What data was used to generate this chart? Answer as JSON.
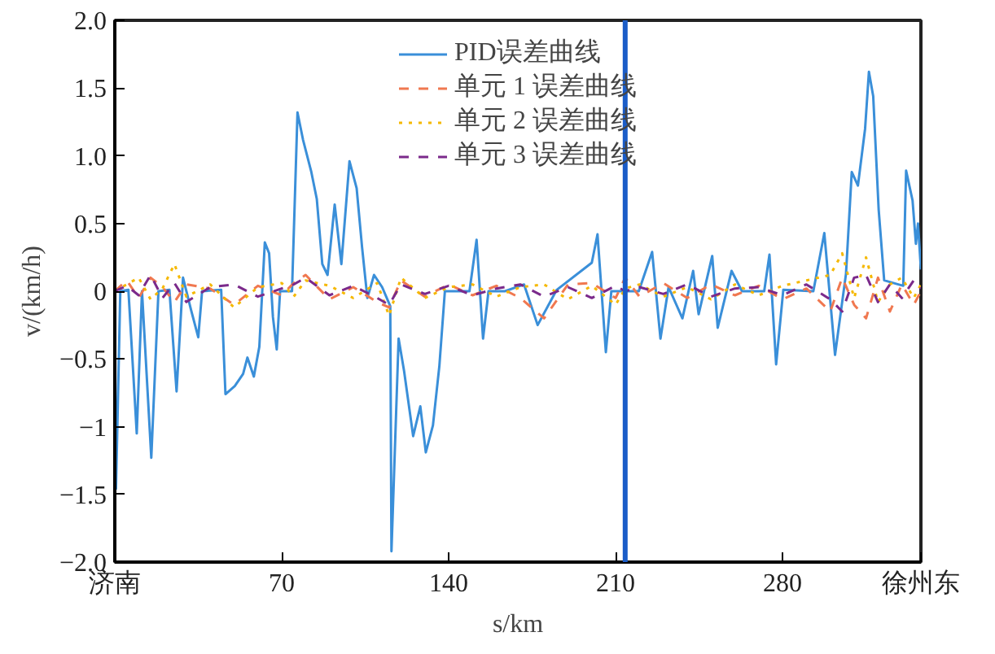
{
  "chart_data": {
    "type": "line",
    "xlabel": "s/km",
    "ylabel": "v/(km/h)",
    "xlim": [
      0,
      338
    ],
    "xticks": [
      {
        "value": 0,
        "label": "济南"
      },
      70,
      140,
      210,
      280,
      {
        "value": 338,
        "label": "徐州东"
      }
    ],
    "ylim": [
      -2.0,
      2.0
    ],
    "yticks": [
      {
        "value": -2.0,
        "label": "−2.0"
      },
      {
        "value": -1.5,
        "label": "−1.5"
      },
      {
        "value": -1,
        "label": "−1"
      },
      {
        "value": -0.5,
        "label": "−0.5"
      },
      0,
      0.5,
      {
        "value": 1.0,
        "label": "1.0"
      },
      1.5,
      {
        "value": 2.0,
        "label": "2.0"
      }
    ],
    "legend": "top",
    "grid": false,
    "ref_lines": [
      {
        "axis": "x",
        "value": 214,
        "color": "#1a5cc8"
      }
    ],
    "series": [
      {
        "name": "PID误差曲线",
        "color": "#3a8fd9",
        "line_style": "solid",
        "x": [
          0,
          0.5,
          2.3,
          5.7,
          9.2,
          11.4,
          15.3,
          18.3,
          22.9,
          25.9,
          28.6,
          32,
          35,
          36.6,
          44.6,
          46.4,
          50.3,
          53.8,
          55.6,
          58.3,
          60.6,
          62.9,
          64.7,
          66.3,
          67.9,
          69.3,
          74.3,
          76.6,
          78.9,
          82.4,
          84.7,
          87,
          89.2,
          92.2,
          95,
          98.4,
          101.4,
          103.7,
          105.9,
          108.7,
          112.1,
          115.5,
          116,
          119,
          121.3,
          125.1,
          128.1,
          130.4,
          133.4,
          136.1,
          138.4,
          148.7,
          151.7,
          154.4,
          156.7,
          163.6,
          171.6,
          177.3,
          185.3,
          200,
          202.4,
          205.9,
          208.2,
          214.6,
          219.7,
          225.3,
          228.8,
          232.2,
          238,
          242.5,
          244.8,
          250.5,
          252.8,
          258.6,
          263,
          272.3,
          274.5,
          277.3,
          280.3,
          292.9,
          297.5,
          302,
          306.6,
          309,
          311.6,
          314.6,
          316.2,
          318,
          320.3,
          322.6,
          330.6,
          331.8,
          334.5,
          335.9,
          336.8,
          338
        ],
        "values": [
          0,
          -1.46,
          0,
          0.01,
          -1.05,
          0,
          -1.23,
          0,
          0.01,
          -0.74,
          0.1,
          -0.14,
          -0.34,
          0,
          0.01,
          -0.76,
          -0.7,
          -0.61,
          -0.49,
          -0.63,
          -0.41,
          0.36,
          0.28,
          -0.19,
          -0.43,
          0,
          0,
          1.32,
          1.12,
          0.88,
          0.68,
          0.2,
          0.12,
          0.64,
          0.2,
          0.96,
          0.76,
          0.32,
          -0.05,
          0.12,
          0.03,
          -0.11,
          -1.92,
          -0.35,
          -0.59,
          -1.07,
          -0.85,
          -1.19,
          -0.99,
          -0.55,
          0,
          0,
          0.38,
          -0.35,
          0,
          0,
          0.05,
          -0.25,
          0.01,
          0.21,
          0.42,
          -0.45,
          0,
          0,
          0,
          0.29,
          -0.35,
          0.03,
          -0.2,
          0.15,
          -0.17,
          0.26,
          -0.27,
          0.15,
          0,
          0,
          0.27,
          -0.54,
          0.01,
          0,
          0.43,
          -0.47,
          0.13,
          0.88,
          0.78,
          1.2,
          1.62,
          1.44,
          0.6,
          0.08,
          0.04,
          0.89,
          0.67,
          0.35,
          0.5,
          0.16
        ]
      },
      {
        "name": "单元 1 误差曲线",
        "color": "#f07850",
        "line_style": "dashed",
        "x": [
          0,
          5,
          10,
          15,
          20,
          25,
          30,
          40,
          50,
          60,
          70,
          75,
          80,
          90,
          100,
          110,
          115,
          120,
          130,
          140,
          150,
          160,
          170,
          180,
          190,
          200,
          210,
          214,
          220,
          230,
          240,
          250,
          260,
          270,
          280,
          290,
          300,
          305,
          310,
          315,
          320,
          325,
          330,
          335,
          338
        ],
        "values": [
          0,
          0.08,
          -0.05,
          0.1,
          0.03,
          -0.08,
          0.05,
          0.02,
          -0.1,
          0.04,
          -0.03,
          0.06,
          0.12,
          -0.06,
          0.03,
          -0.08,
          -0.12,
          0.08,
          -0.04,
          0.05,
          -0.03,
          0.04,
          -0.05,
          -0.2,
          0.05,
          0.06,
          -0.05,
          0.1,
          -0.04,
          0.06,
          -0.05,
          0.05,
          -0.03,
          0.04,
          -0.06,
          0.02,
          -0.15,
          0.1,
          -0.1,
          -0.2,
          0.1,
          -0.15,
          0.05,
          -0.1,
          0
        ]
      },
      {
        "name": "单元 2 误差曲线",
        "color": "#f5b800",
        "line_style": "dotted",
        "x": [
          0,
          5,
          10,
          15,
          20,
          25,
          30,
          40,
          50,
          60,
          70,
          75,
          80,
          90,
          100,
          110,
          115,
          120,
          130,
          140,
          150,
          160,
          170,
          180,
          190,
          200,
          210,
          214,
          220,
          230,
          240,
          250,
          260,
          270,
          280,
          290,
          300,
          305,
          310,
          315,
          320,
          325,
          330,
          335,
          338
        ],
        "values": [
          0,
          0.05,
          0.1,
          -0.06,
          0.02,
          0.2,
          -0.04,
          0.05,
          -0.12,
          0.03,
          0.06,
          -0.04,
          0.08,
          0.04,
          -0.05,
          0.06,
          -0.18,
          0.1,
          -0.05,
          0.03,
          0.05,
          -0.04,
          0.03,
          0.05,
          -0.06,
          0.04,
          -0.1,
          0.02,
          0.05,
          -0.04,
          0.03,
          -0.06,
          0.05,
          -0.03,
          0.04,
          0.08,
          0.12,
          0.28,
          -0.05,
          0.25,
          -0.08,
          0.05,
          0.1,
          -0.05,
          0.05
        ]
      },
      {
        "name": "单元 3 误差曲线",
        "color": "#7b2a8b",
        "line_style": "dashed",
        "x": [
          0,
          5,
          10,
          15,
          20,
          25,
          30,
          40,
          50,
          60,
          70,
          75,
          80,
          90,
          100,
          110,
          115,
          120,
          130,
          140,
          150,
          160,
          170,
          180,
          190,
          200,
          210,
          214,
          220,
          230,
          240,
          250,
          260,
          270,
          280,
          290,
          300,
          305,
          310,
          315,
          320,
          325,
          330,
          335,
          338
        ],
        "values": [
          0,
          0.04,
          -0.03,
          0.12,
          -0.05,
          0.06,
          -0.08,
          0.03,
          0.05,
          -0.04,
          0.02,
          0.05,
          0.1,
          -0.03,
          0.04,
          -0.05,
          -0.1,
          0.05,
          -0.02,
          0.04,
          -0.03,
          0.02,
          0.05,
          -0.04,
          0.03,
          -0.05,
          0.04,
          0,
          0.03,
          -0.02,
          0.05,
          -0.04,
          0.02,
          0.03,
          -0.03,
          0.05,
          -0.06,
          -0.15,
          0.1,
          0.12,
          -0.08,
          0.05,
          -0.05,
          0.08,
          0.02
        ]
      }
    ]
  }
}
